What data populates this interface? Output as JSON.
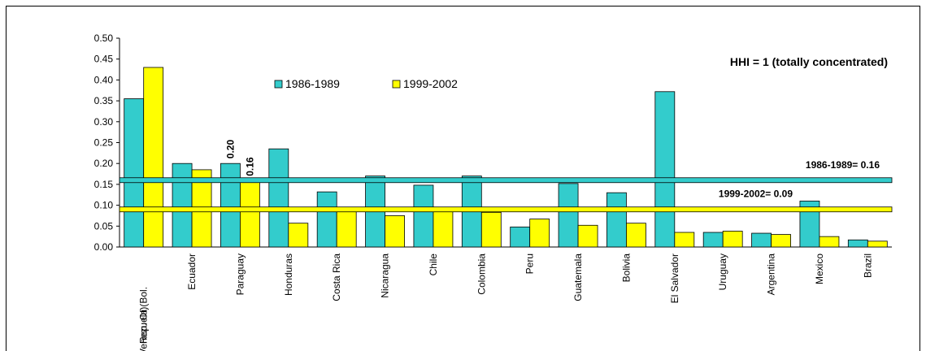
{
  "chart_data": {
    "type": "bar",
    "annotation": "HHI = 1 (totally concentrated)",
    "categories": [
      "Venezuela (Bol. Rep. Of)",
      "Ecuador",
      "Paraguay",
      "Honduras",
      "Costa Rica",
      "Nicaragua",
      "Chile",
      "Colombia",
      "Peru",
      "Guatemala",
      "Bolivia",
      "El Salvador",
      "Uruguay",
      "Argentina",
      "Mexico",
      "Brazil"
    ],
    "series": [
      {
        "name": "1986-1989",
        "color": "#33cccc",
        "values": [
          0.355,
          0.2,
          0.2,
          0.235,
          0.132,
          0.17,
          0.148,
          0.17,
          0.048,
          0.152,
          0.13,
          0.372,
          0.035,
          0.033,
          0.11,
          0.017
        ],
        "value_labels": [
          null,
          null,
          "0.20",
          null,
          null,
          null,
          null,
          null,
          null,
          null,
          null,
          null,
          null,
          null,
          null,
          null
        ]
      },
      {
        "name": "1999-2002",
        "color": "#ffff00",
        "values": [
          0.43,
          0.185,
          0.158,
          0.057,
          0.093,
          0.075,
          0.093,
          0.083,
          0.067,
          0.052,
          0.057,
          0.035,
          0.038,
          0.03,
          0.025,
          0.014
        ],
        "value_labels": [
          null,
          null,
          "0.16",
          null,
          null,
          null,
          null,
          null,
          null,
          null,
          null,
          null,
          null,
          null,
          null,
          null
        ]
      }
    ],
    "reference_lines": [
      {
        "label": "1986-1989= 0.16",
        "value": 0.16,
        "color": "#33cccc"
      },
      {
        "label": "1999-2002= 0.09",
        "value": 0.09,
        "color": "#ffff00"
      }
    ],
    "ylim": [
      0,
      0.5
    ],
    "yticks": [
      {
        "value": 0,
        "label": "0.00"
      },
      {
        "value": 0.05,
        "label": "0.05"
      },
      {
        "value": 0.1,
        "label": "0.10"
      },
      {
        "value": 0.15,
        "label": "0.15"
      },
      {
        "value": 0.2,
        "label": "0.20"
      },
      {
        "value": 0.25,
        "label": "0.25"
      },
      {
        "value": 0.3,
        "label": "0.30"
      },
      {
        "value": 0.35,
        "label": "0.35"
      },
      {
        "value": 0.4,
        "label": "0.40"
      },
      {
        "value": 0.45,
        "label": "0.45"
      },
      {
        "value": 0.5,
        "label": "0.50"
      }
    ],
    "grid": false
  }
}
